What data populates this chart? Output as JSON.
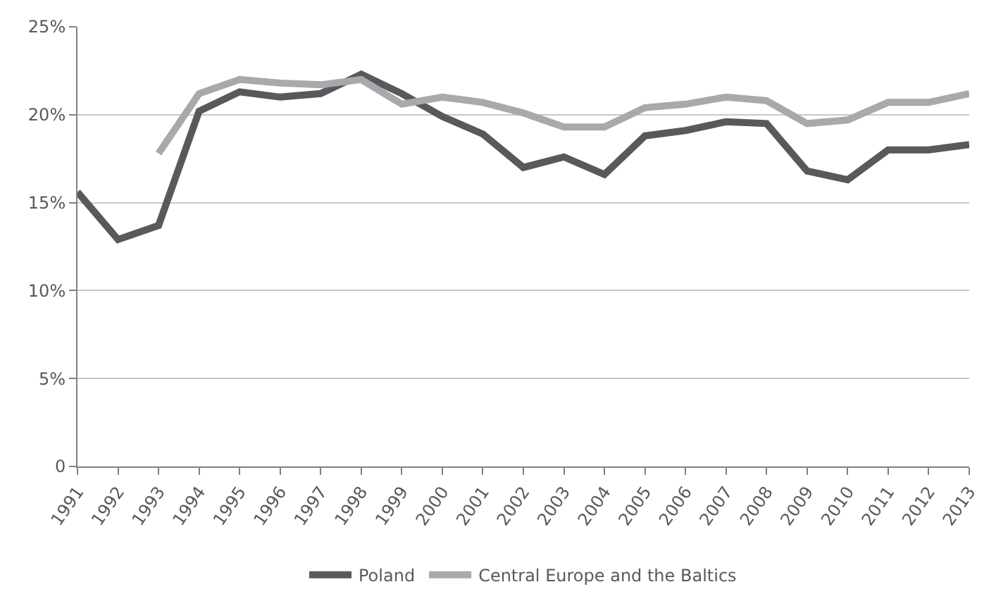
{
  "chart_data": {
    "type": "line",
    "categories": [
      "1991",
      "1992",
      "1993",
      "1994",
      "1995",
      "1996",
      "1997",
      "1998",
      "1999",
      "2000",
      "2001",
      "2002",
      "2003",
      "2004",
      "2005",
      "2006",
      "2007",
      "2008",
      "2009",
      "2010",
      "2011",
      "2012",
      "2013"
    ],
    "series": [
      {
        "name": "Poland",
        "color": "#58595b",
        "values": [
          15.6,
          12.9,
          13.7,
          20.2,
          21.3,
          21.0,
          21.2,
          22.3,
          21.2,
          19.9,
          18.9,
          17.0,
          17.6,
          16.6,
          18.8,
          19.1,
          19.6,
          19.5,
          16.8,
          16.3,
          18.0,
          18.0,
          18.3
        ]
      },
      {
        "name": "Central Europe and the Baltics",
        "color": "#a7a9ac",
        "values": [
          null,
          null,
          17.8,
          21.2,
          22.0,
          21.8,
          21.7,
          22.0,
          20.6,
          21.0,
          20.7,
          20.1,
          19.3,
          19.3,
          20.4,
          20.6,
          21.0,
          20.8,
          19.5,
          19.7,
          20.7,
          20.7,
          21.2
        ]
      }
    ],
    "ylim": [
      0,
      25
    ],
    "yticks": [
      {
        "value": 0,
        "label": "0"
      },
      {
        "value": 5,
        "label": "5%"
      },
      {
        "value": 10,
        "label": "10%"
      },
      {
        "value": 15,
        "label": "15%"
      },
      {
        "value": 20,
        "label": "20%"
      },
      {
        "value": 25,
        "label": "25%"
      }
    ],
    "grid": "y",
    "legend": "bottom",
    "marker": "none",
    "line_style": "solid"
  }
}
